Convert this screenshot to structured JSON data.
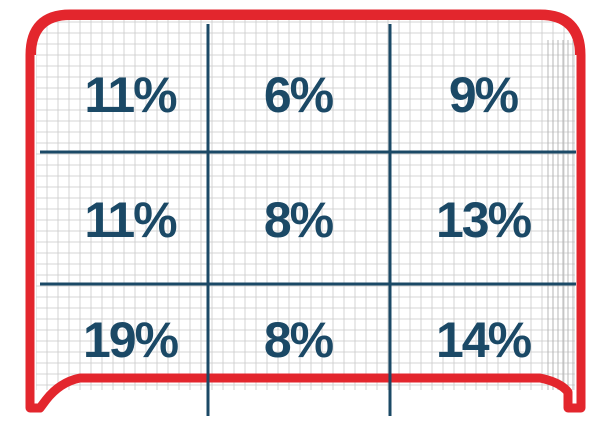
{
  "chart_data": {
    "type": "heatmap",
    "title": "",
    "rows": [
      "top",
      "middle",
      "bottom"
    ],
    "columns": [
      "left",
      "center",
      "right"
    ],
    "values": [
      [
        11,
        6,
        9
      ],
      [
        11,
        8,
        13
      ],
      [
        19,
        8,
        14
      ]
    ],
    "labels": [
      [
        "11%",
        "6%",
        "9%"
      ],
      [
        "11%",
        "8%",
        "13%"
      ],
      [
        "19%",
        "8%",
        "14%"
      ]
    ],
    "unit": "%"
  },
  "colors": {
    "frame": "#e3262d",
    "divider": "#1b4966",
    "label": "#1b4966",
    "net": "#c8c8c8",
    "background": "#ffffff"
  }
}
